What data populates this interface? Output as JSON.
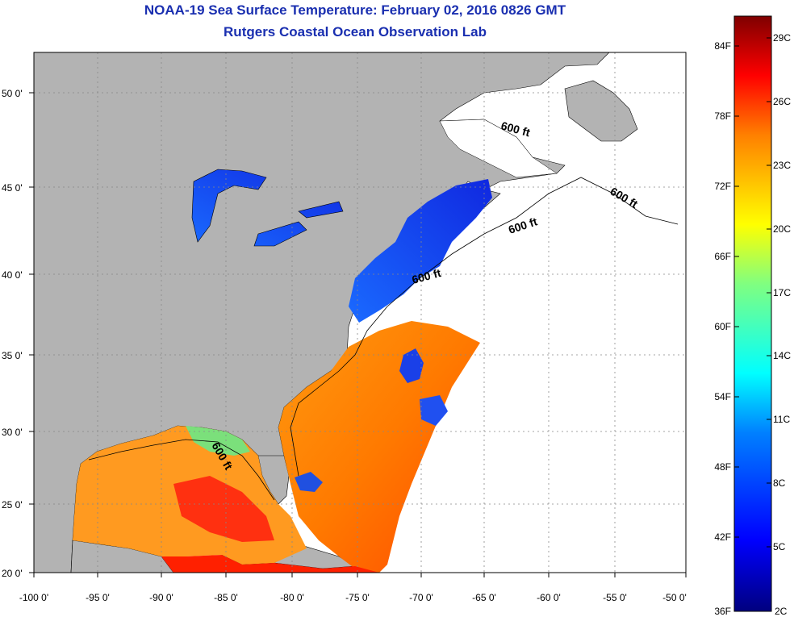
{
  "title": "NOAA-19 Sea Surface Temperature:  February 02, 2016 0826 GMT",
  "subtitle": "Rutgers Coastal Ocean Observation Lab",
  "map": {
    "lon_ticks": [
      "-100 0'",
      "-95 0'",
      "-90 0'",
      "-85 0'",
      "-80 0'",
      "-75 0'",
      "-70 0'",
      "-65 0'",
      "-60 0'",
      "-55 0'",
      "-50 0'"
    ],
    "lat_ticks": [
      "50 0'",
      "45 0'",
      "40 0'",
      "35 0'",
      "30 0'",
      "25 0'",
      "20 0'"
    ],
    "contour_labels": [
      "600 ft",
      "600 ft",
      "600 ft",
      "600 ft",
      "600 ft"
    ],
    "land_color": "#b3b3b3",
    "grid": true
  },
  "colorbar": {
    "fahrenheit": [
      "84F",
      "78F",
      "72F",
      "66F",
      "60F",
      "54F",
      "48F",
      "42F",
      "36F"
    ],
    "celsius": [
      "29C",
      "26C",
      "23C",
      "20C",
      "17C",
      "14C",
      "11C",
      "8C",
      "5C",
      "2C"
    ]
  }
}
